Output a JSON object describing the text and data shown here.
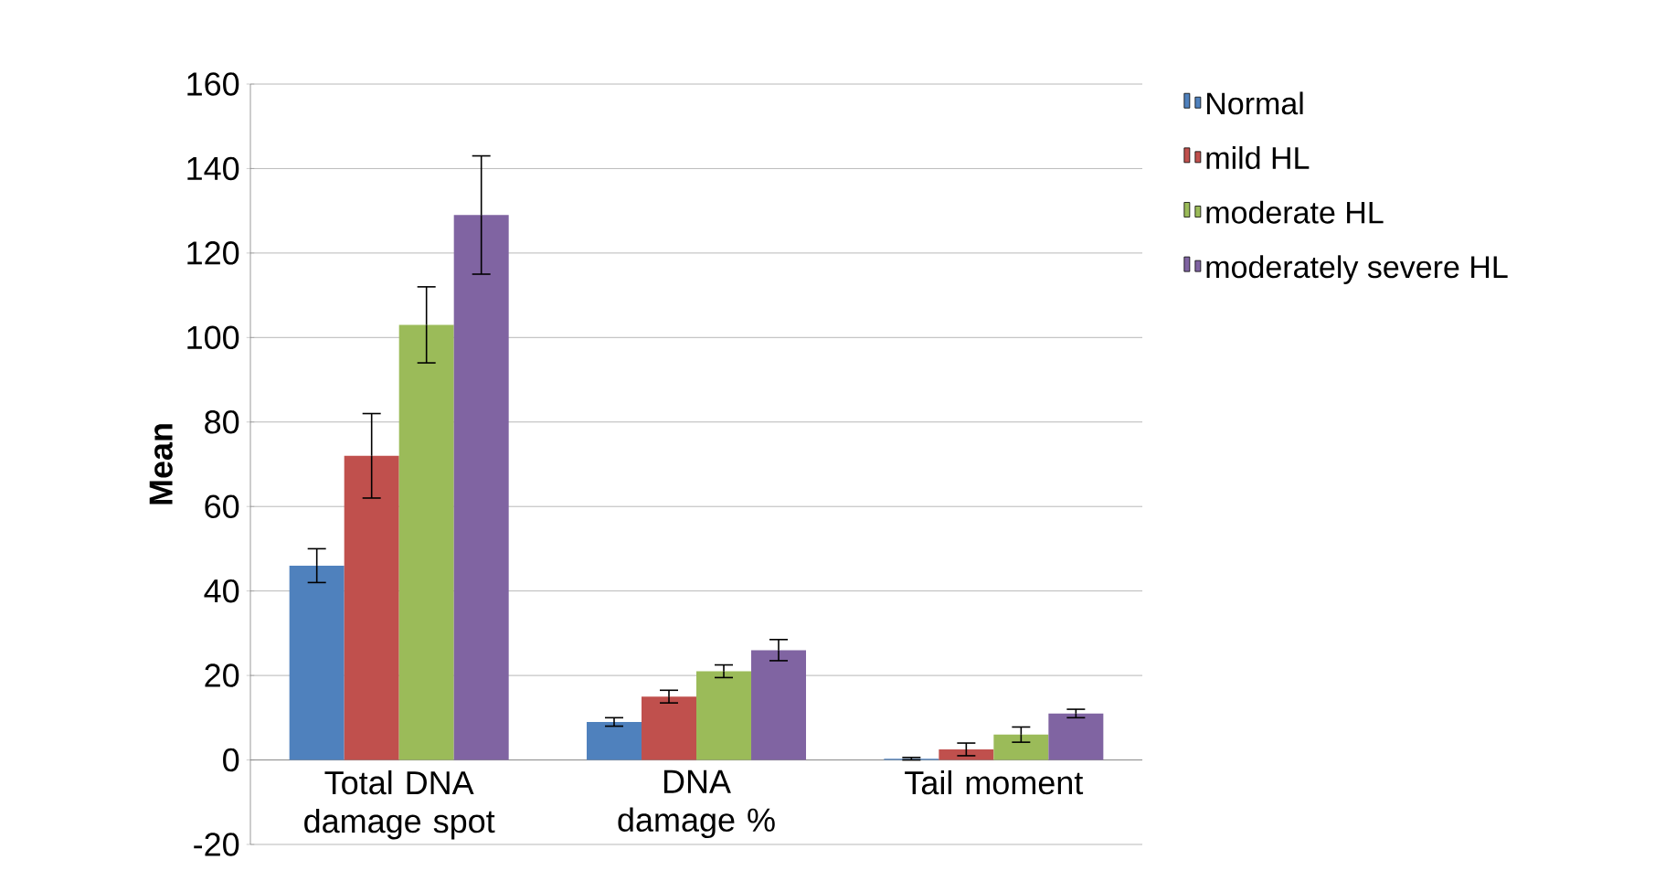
{
  "chart_data": {
    "type": "bar",
    "ylabel": "Mean",
    "categories": [
      "Total DNA damage spot",
      "DNA damage %",
      "Tail moment"
    ],
    "series": [
      {
        "name": "Normal",
        "color": "#4f81bd",
        "values": [
          46,
          9,
          0.3
        ],
        "errors": [
          4,
          1,
          0.3
        ]
      },
      {
        "name": "mild HL",
        "color": "#c0504d",
        "values": [
          72,
          15,
          2.5
        ],
        "errors": [
          10,
          1.5,
          1.5
        ]
      },
      {
        "name": "moderate HL",
        "color": "#9bbb59",
        "values": [
          103,
          21,
          6
        ],
        "errors": [
          9,
          1.5,
          1.8
        ]
      },
      {
        "name": "moderately severe HL",
        "color": "#8064a2",
        "values": [
          129,
          26,
          11
        ],
        "errors": [
          14,
          2.5,
          1
        ]
      }
    ],
    "ylim": [
      -20,
      160
    ],
    "yticks": [
      -20,
      0,
      20,
      40,
      60,
      80,
      100,
      120,
      140,
      160
    ],
    "grid": "y",
    "legend": "right"
  }
}
